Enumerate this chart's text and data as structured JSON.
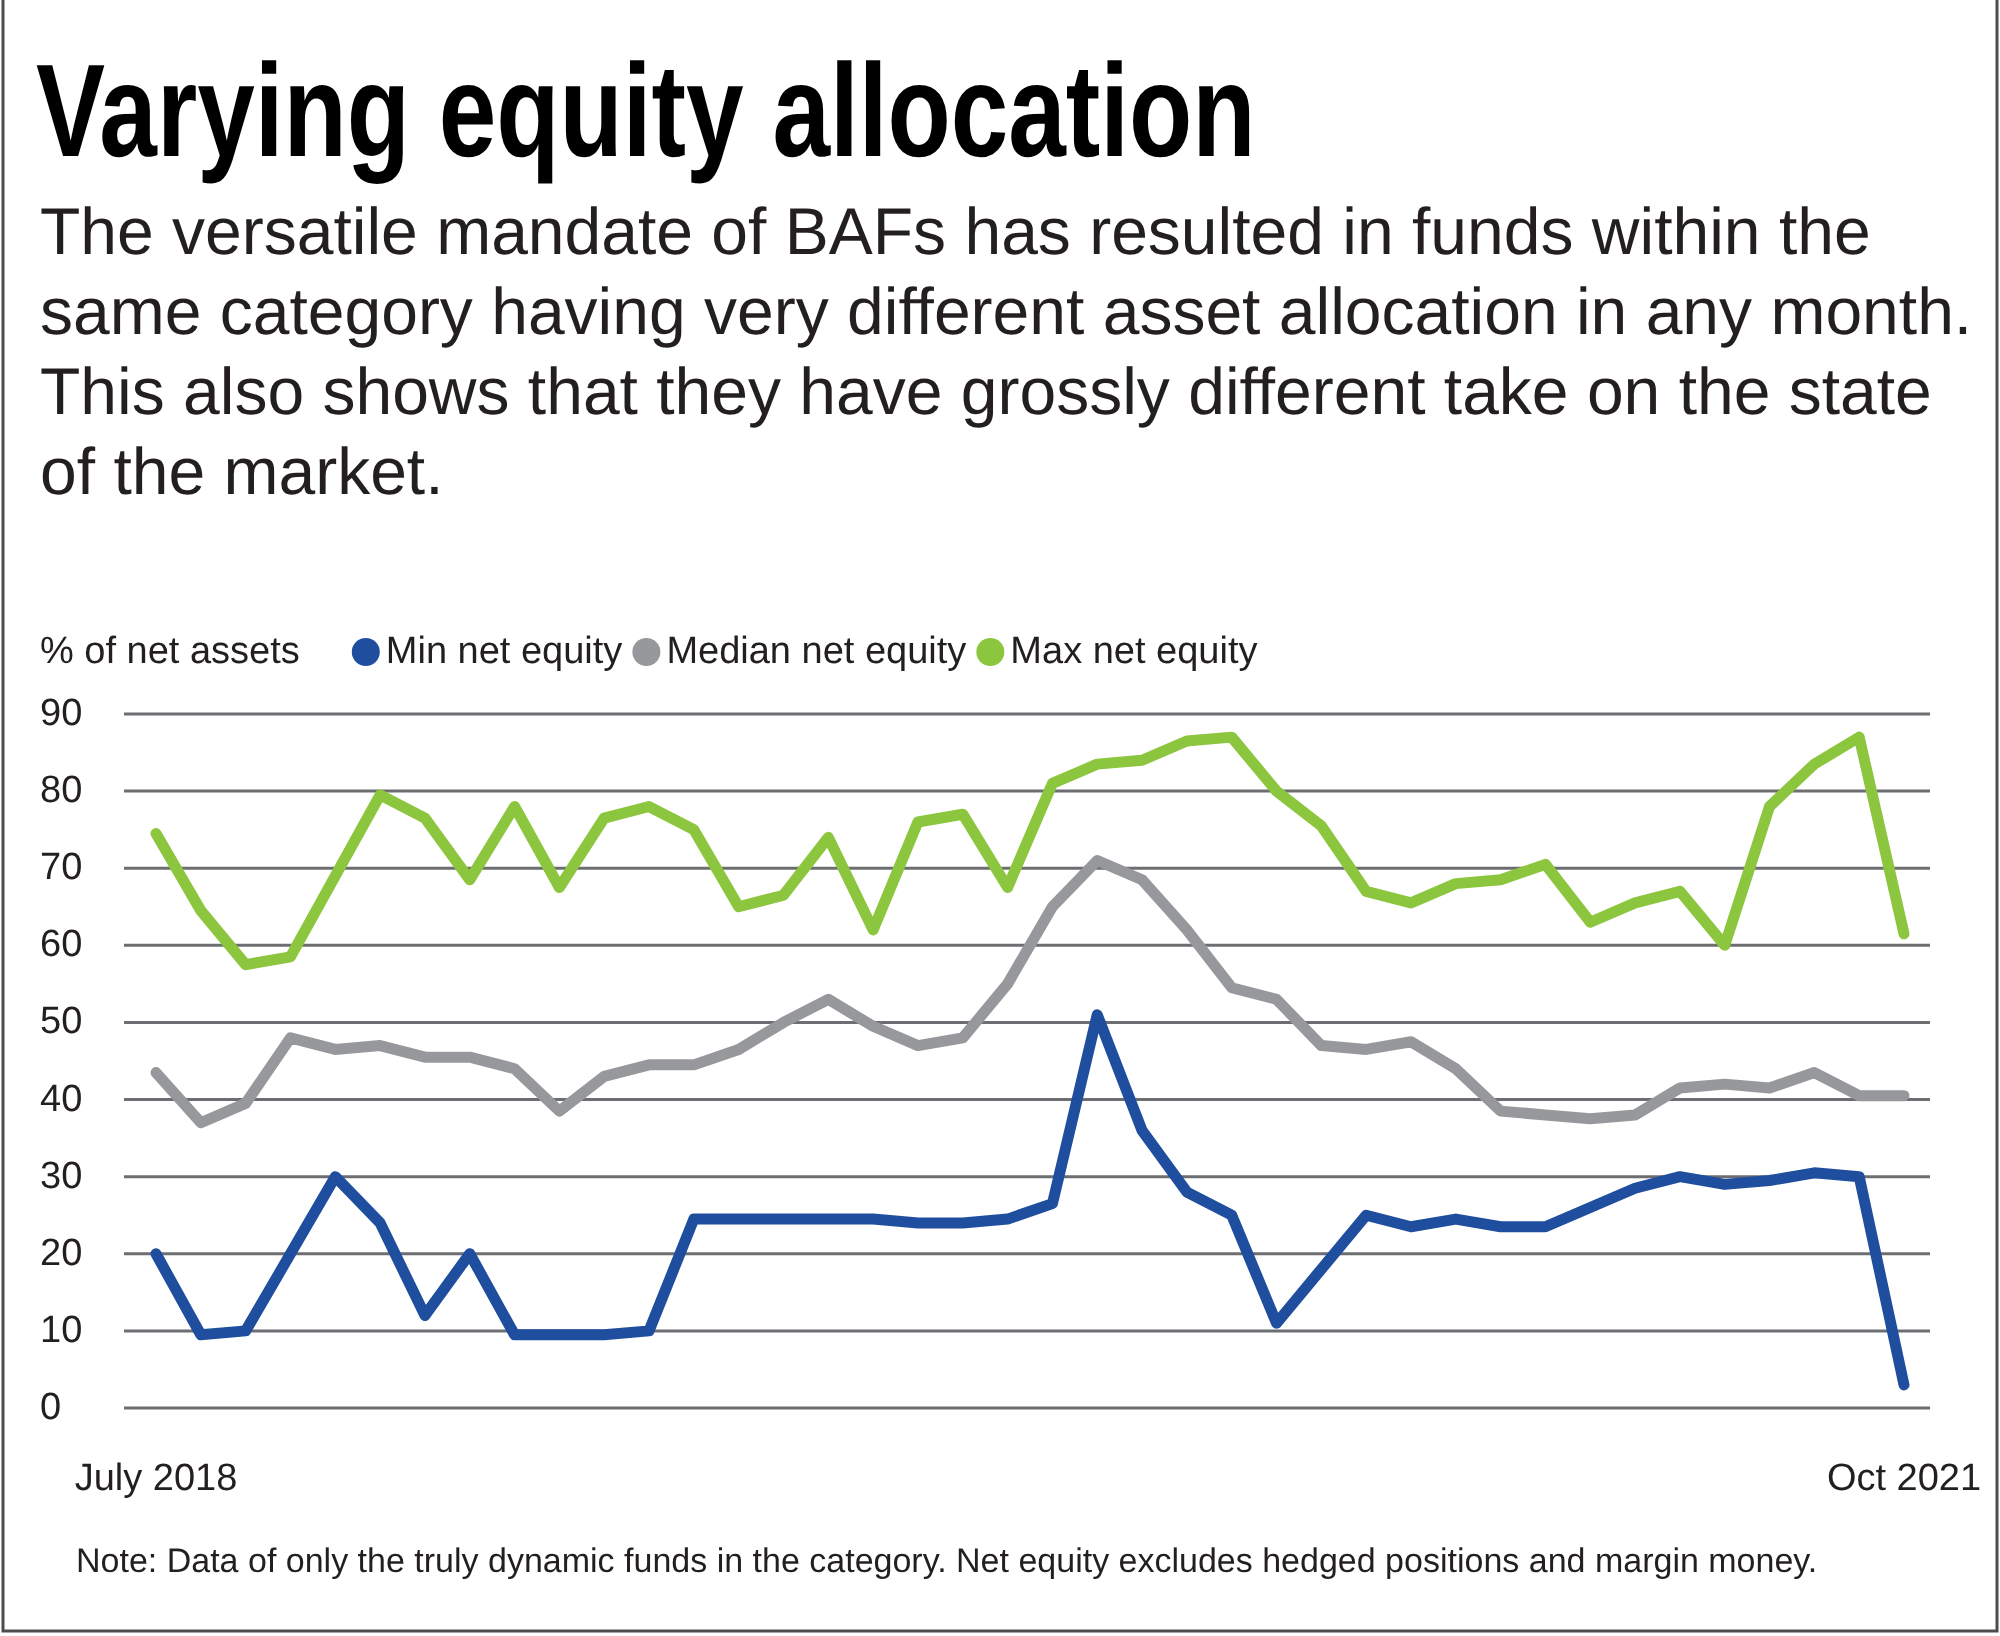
{
  "chart_data": {
    "type": "line",
    "title": "Varying equity allocation",
    "subtitle": "The versatile mandate of BAFs has resulted in funds within the same category having very different asset allocation in any month. This also shows that they have grossly different take on the state of the market.",
    "ylabel": "% of net assets",
    "categories": [
      "July 2018",
      null,
      null,
      null,
      null,
      null,
      null,
      null,
      null,
      null,
      null,
      null,
      null,
      null,
      null,
      null,
      null,
      null,
      null,
      null,
      null,
      null,
      null,
      null,
      null,
      null,
      null,
      null,
      null,
      null,
      null,
      null,
      null,
      null,
      null,
      null,
      null,
      null,
      null,
      "Oct 2021"
    ],
    "series": [
      {
        "name": "Min net equity",
        "color": "#1f4e9f",
        "values": [
          20,
          9.5,
          10,
          20,
          30,
          24,
          12,
          20,
          9.5,
          9.5,
          9.5,
          10,
          24.5,
          24.5,
          24.5,
          24.5,
          24.5,
          24,
          24,
          24.5,
          26.5,
          51,
          36,
          28,
          25,
          11,
          18,
          25,
          23.5,
          24.5,
          23.5,
          23.5,
          26,
          28.5,
          30,
          29,
          29.5,
          30.5,
          30,
          3
        ]
      },
      {
        "name": "Median net equity",
        "color": "#97989b",
        "values": [
          43.5,
          37,
          39.5,
          48,
          46.5,
          47,
          45.5,
          45.5,
          44,
          38.5,
          43,
          44.5,
          44.5,
          46.5,
          50,
          53,
          49.5,
          47,
          48,
          55,
          65,
          71,
          68.5,
          62,
          54.5,
          53,
          47,
          46.5,
          47.5,
          44,
          38.5,
          38,
          37.5,
          38,
          41.5,
          42,
          41.5,
          43.5,
          40.5,
          40.5
        ]
      },
      {
        "name": "Max net equity",
        "color": "#8cc63f",
        "values": [
          74.5,
          64.5,
          57.5,
          58.5,
          69,
          79.5,
          76.5,
          68.5,
          78,
          67.5,
          76.5,
          78,
          75,
          65,
          66.5,
          74,
          62,
          76,
          77,
          67.5,
          81,
          83.5,
          84,
          86.5,
          87,
          80,
          75.5,
          67,
          65.5,
          68,
          68.5,
          70.5,
          63,
          65.5,
          67,
          60,
          78,
          83.5,
          87,
          61.5
        ]
      }
    ],
    "ylim": [
      0,
      90
    ],
    "yticks": [
      0,
      10,
      20,
      30,
      40,
      50,
      60,
      70,
      80,
      90
    ],
    "grid": "y",
    "legend": "top",
    "annotations": [
      "Note: Data of only the truly dynamic funds in the category. Net equity excludes hedged positions and margin money."
    ]
  }
}
